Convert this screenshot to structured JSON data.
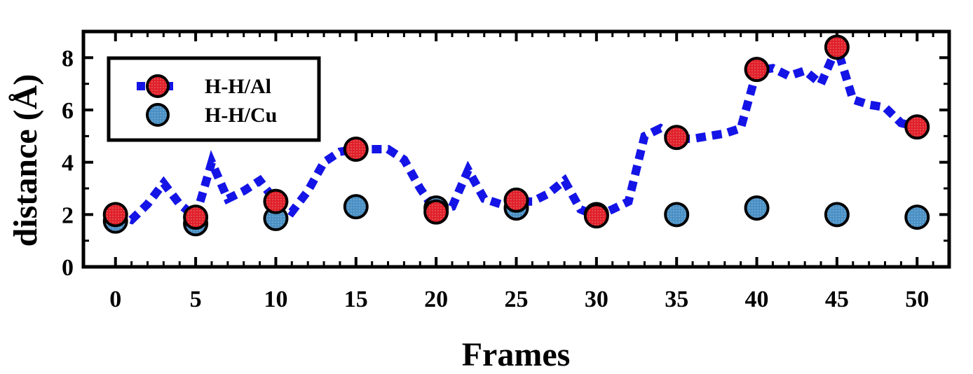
{
  "chart_data": {
    "type": "line",
    "title": "",
    "xlabel": "Frames",
    "ylabel": "distance (Å)",
    "xlim": [
      -2,
      52
    ],
    "ylim": [
      0,
      9
    ],
    "x_ticks": [
      0,
      5,
      10,
      15,
      20,
      25,
      30,
      35,
      40,
      45,
      50
    ],
    "x_tick_labels": [
      "0",
      "5",
      "10",
      "15",
      "20",
      "25",
      "30",
      "35",
      "40",
      "45",
      "50"
    ],
    "y_ticks": [
      0,
      2,
      4,
      6,
      8
    ],
    "y_tick_labels": [
      "0",
      "2",
      "4",
      "6",
      "8"
    ],
    "grid": false,
    "legend_position": "top-left",
    "series": [
      {
        "name": "H-H/Al",
        "line_color": "#1414e6",
        "marker_color": "#e0202a",
        "line_x": [
          0,
          1,
          2,
          3,
          4,
          5,
          6,
          7,
          8,
          9,
          10,
          11,
          12,
          13,
          14,
          15,
          16,
          17,
          18,
          19,
          20,
          21,
          22,
          23,
          24,
          25,
          26,
          27,
          28,
          29,
          30,
          31,
          32,
          33,
          34,
          35,
          36,
          37,
          38,
          39,
          40,
          41,
          42,
          43,
          44,
          45,
          46,
          47,
          48,
          49,
          50
        ],
        "line_y": [
          2.0,
          1.8,
          2.4,
          3.2,
          2.4,
          1.9,
          4.0,
          2.6,
          2.9,
          3.3,
          2.5,
          2.1,
          2.9,
          4.0,
          4.4,
          4.5,
          4.5,
          4.5,
          4.1,
          3.0,
          2.1,
          2.3,
          3.7,
          2.6,
          2.4,
          2.5,
          2.5,
          2.8,
          3.3,
          2.2,
          1.95,
          2.2,
          2.5,
          5.0,
          5.3,
          4.9,
          4.9,
          5.0,
          5.1,
          5.3,
          7.5,
          7.6,
          7.3,
          7.5,
          7.0,
          8.4,
          6.4,
          6.2,
          6.1,
          5.5,
          5.35
        ],
        "marker_x": [
          0,
          5,
          10,
          15,
          20,
          25,
          30,
          35,
          40,
          45,
          50
        ],
        "marker_y": [
          2.0,
          1.9,
          2.5,
          4.5,
          2.1,
          2.55,
          1.95,
          4.95,
          7.55,
          8.4,
          5.35
        ]
      },
      {
        "name": "H-H/Cu",
        "marker_color": "#4a90c4",
        "marker_x": [
          0,
          5,
          10,
          15,
          20,
          25,
          30,
          35,
          40,
          45,
          50
        ],
        "marker_y": [
          1.75,
          1.65,
          1.85,
          2.3,
          2.25,
          2.25,
          2.0,
          2.0,
          2.25,
          2.0,
          1.9
        ]
      }
    ]
  }
}
